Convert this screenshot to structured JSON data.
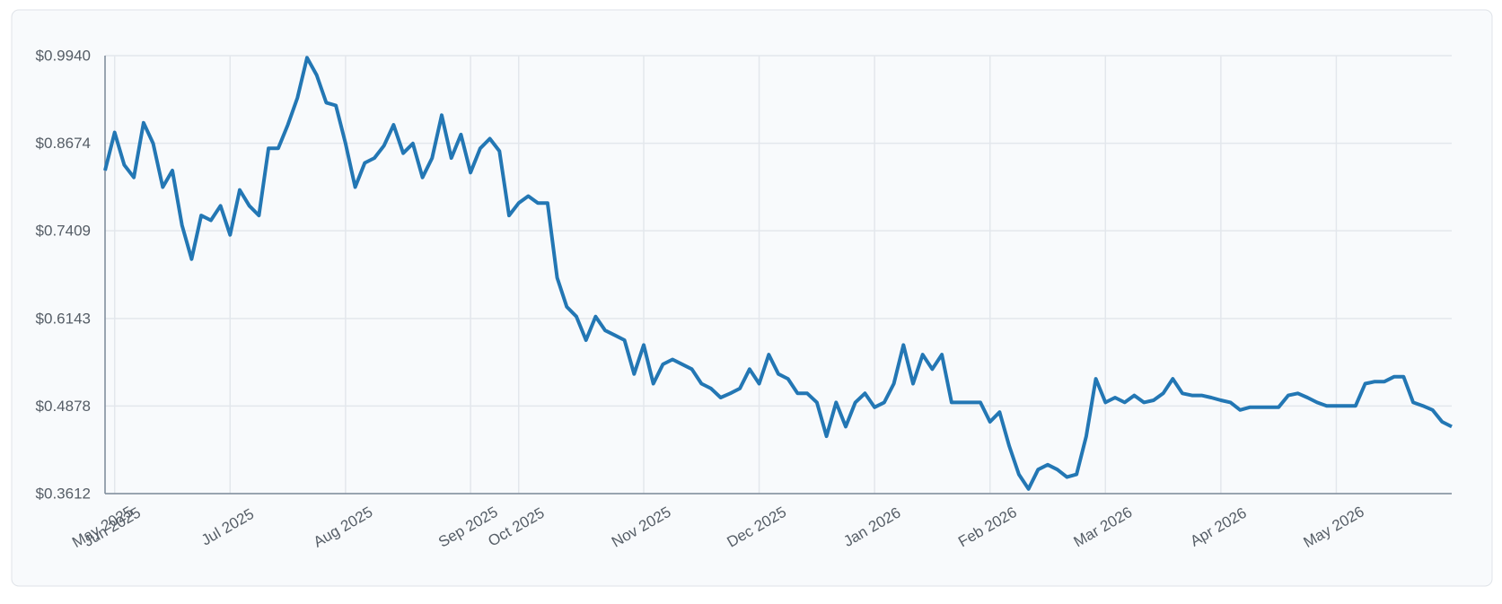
{
  "chart_data": {
    "type": "line",
    "x": [
      0,
      1,
      2,
      3,
      4,
      5,
      6,
      7,
      8,
      9,
      10,
      11,
      12,
      13,
      14,
      15,
      16,
      17,
      18,
      19,
      20,
      21,
      22,
      23,
      24,
      25,
      26,
      27,
      28,
      29,
      30,
      31,
      32,
      33,
      34,
      35,
      36,
      37,
      38,
      39,
      40,
      41,
      42,
      43,
      44,
      45,
      46,
      47,
      48,
      49,
      50,
      51,
      52,
      53,
      54,
      55,
      56,
      57,
      58,
      59,
      60,
      61,
      62,
      63,
      64,
      65,
      66,
      67,
      68,
      69,
      70,
      71,
      72,
      73,
      74,
      75,
      76,
      77,
      78,
      79,
      80,
      81,
      82,
      83,
      84,
      85,
      86,
      87,
      88,
      89,
      90,
      91,
      92,
      93,
      94,
      95,
      96,
      97,
      98,
      99,
      100,
      101,
      102,
      103,
      104,
      105,
      106,
      107,
      108,
      109,
      110,
      111,
      112,
      113,
      114,
      115,
      116,
      117,
      118,
      119,
      120,
      121,
      122,
      123,
      124,
      125,
      126,
      127,
      128,
      129,
      130,
      131,
      132,
      133,
      134,
      135,
      136,
      137,
      138,
      139,
      140
    ],
    "series": [
      {
        "color": "#2377b4",
        "values": [
          0.828,
          0.883,
          0.836,
          0.818,
          0.897,
          0.867,
          0.804,
          0.828,
          0.749,
          0.7,
          0.763,
          0.756,
          0.777,
          0.735,
          0.8,
          0.777,
          0.763,
          0.86,
          0.86,
          0.894,
          0.933,
          0.991,
          0.966,
          0.926,
          0.922,
          0.867,
          0.804,
          0.839,
          0.846,
          0.864,
          0.894,
          0.853,
          0.867,
          0.818,
          0.846,
          0.908,
          0.846,
          0.88,
          0.825,
          0.86,
          0.874,
          0.856,
          0.763,
          0.781,
          0.791,
          0.781,
          0.781,
          0.673,
          0.631,
          0.617,
          0.583,
          0.617,
          0.597,
          0.59,
          0.583,
          0.534,
          0.576,
          0.52,
          0.548,
          0.555,
          0.548,
          0.541,
          0.52,
          0.513,
          0.5,
          0.506,
          0.513,
          0.541,
          0.52,
          0.562,
          0.534,
          0.527,
          0.506,
          0.506,
          0.493,
          0.444,
          0.493,
          0.458,
          0.493,
          0.506,
          0.486,
          0.493,
          0.52,
          0.576,
          0.52,
          0.562,
          0.541,
          0.562,
          0.493,
          0.493,
          0.493,
          0.493,
          0.465,
          0.479,
          0.43,
          0.389,
          0.368,
          0.396,
          0.403,
          0.396,
          0.385,
          0.389,
          0.444,
          0.527,
          0.493,
          0.5,
          0.493,
          0.503,
          0.493,
          0.496,
          0.506,
          0.527,
          0.506,
          0.503,
          0.503,
          0.5,
          0.496,
          0.493,
          0.482,
          0.486,
          0.486,
          0.486,
          0.486,
          0.503,
          0.506,
          0.5,
          0.493,
          0.488,
          0.488,
          0.488,
          0.488,
          0.52,
          0.523,
          0.523,
          0.53,
          0.53,
          0.493,
          0.488,
          0.482,
          0.465,
          0.458
        ]
      }
    ],
    "xlim": [
      0,
      140
    ],
    "xticks": [
      {
        "value": 0,
        "label": "May 2025"
      },
      {
        "value": 1,
        "label": "Jun 2025"
      },
      {
        "value": 13,
        "label": "Jul 2025"
      },
      {
        "value": 25,
        "label": "Aug 2025"
      },
      {
        "value": 38,
        "label": "Sep 2025"
      },
      {
        "value": 43,
        "label": "Oct 2025"
      },
      {
        "value": 56,
        "label": "Nov 2025"
      },
      {
        "value": 68,
        "label": "Dec 2025"
      },
      {
        "value": 80,
        "label": "Jan 2026"
      },
      {
        "value": 92,
        "label": "Feb 2026"
      },
      {
        "value": 104,
        "label": "Mar 2026"
      },
      {
        "value": 116,
        "label": "Apr 2026"
      },
      {
        "value": 128,
        "label": "May 2026"
      }
    ],
    "ylim": [
      0.3612,
      0.994
    ],
    "yticks": [
      {
        "value": 0.3612,
        "label": "$0.3612"
      },
      {
        "value": 0.4878,
        "label": "$0.4878"
      },
      {
        "value": 0.6143,
        "label": "$0.6143"
      },
      {
        "value": 0.7409,
        "label": "$0.7409"
      },
      {
        "value": 0.8674,
        "label": "$0.8674"
      },
      {
        "value": 0.994,
        "label": "$0.9940"
      }
    ],
    "grid": true
  }
}
